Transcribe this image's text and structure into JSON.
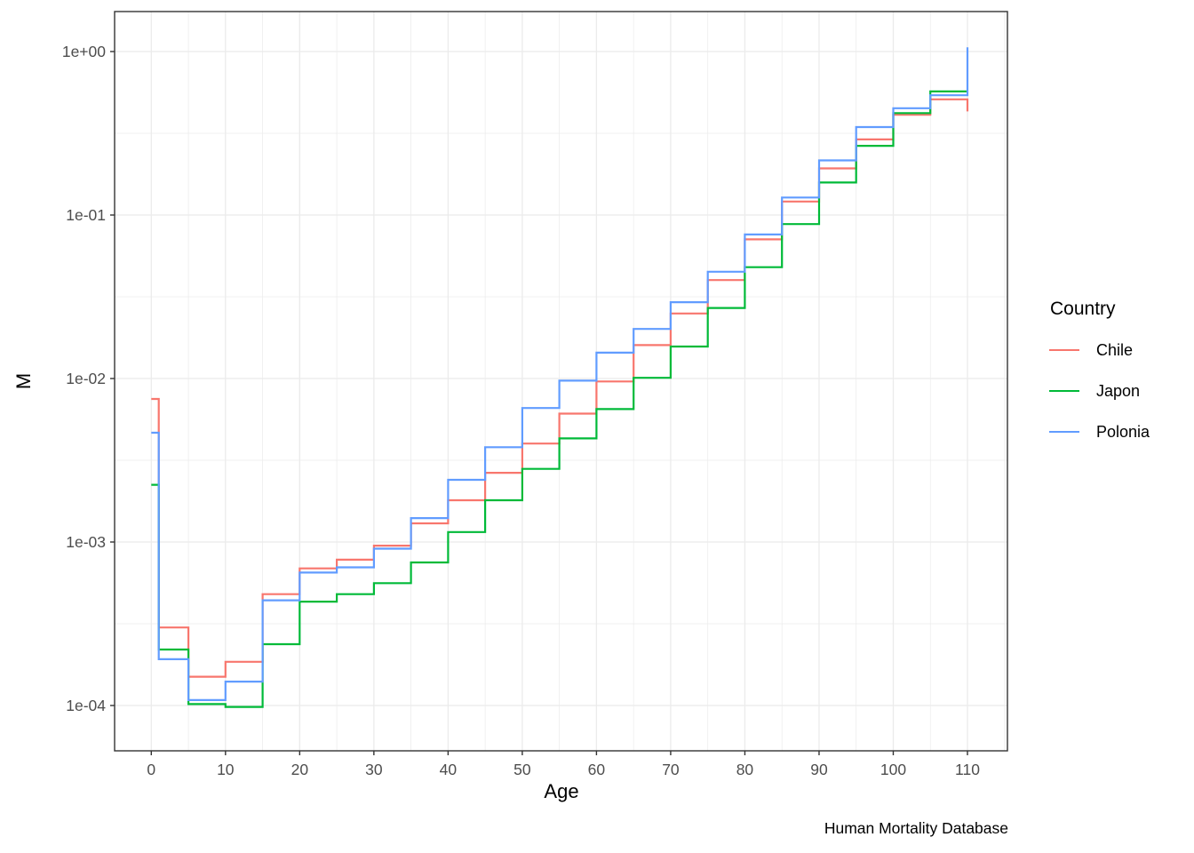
{
  "chart_data": {
    "type": "line",
    "step": true,
    "title": "",
    "xlabel": "Age",
    "ylabel": "M",
    "caption": "Human Mortality Database",
    "legend_title": "Country",
    "legend_position": "right",
    "grid": true,
    "x": [
      0,
      1,
      5,
      10,
      15,
      20,
      25,
      30,
      35,
      40,
      45,
      50,
      55,
      60,
      65,
      70,
      75,
      80,
      85,
      90,
      95,
      100,
      105,
      110
    ],
    "series": [
      {
        "name": "Chile",
        "color": "#F8766D",
        "values": [
          0.0075,
          0.0003,
          0.00015,
          0.000185,
          0.00048,
          0.00069,
          0.00078,
          0.00095,
          0.0013,
          0.0018,
          0.00265,
          0.004,
          0.0061,
          0.0096,
          0.016,
          0.025,
          0.04,
          0.071,
          0.121,
          0.193,
          0.29,
          0.41,
          0.51,
          0.43
        ]
      },
      {
        "name": "Japon",
        "color": "#00BA38",
        "values": [
          0.00224,
          0.00022,
          0.000102,
          9.8e-05,
          0.000237,
          0.000432,
          0.00048,
          0.00056,
          0.00075,
          0.00115,
          0.0018,
          0.0028,
          0.0043,
          0.0065,
          0.0101,
          0.0157,
          0.027,
          0.048,
          0.088,
          0.158,
          0.265,
          0.42,
          0.57,
          0.57
        ]
      },
      {
        "name": "Polonia",
        "color": "#619CFF",
        "values": [
          0.00466,
          0.000192,
          0.000108,
          0.00014,
          0.00044,
          0.00065,
          0.0007,
          0.00091,
          0.0014,
          0.0024,
          0.0038,
          0.0066,
          0.0097,
          0.0144,
          0.0201,
          0.0293,
          0.045,
          0.076,
          0.128,
          0.216,
          0.345,
          0.45,
          0.54,
          1.06
        ]
      }
    ],
    "x_axis": {
      "tick_values": [
        0,
        10,
        20,
        30,
        40,
        50,
        60,
        70,
        80,
        90,
        100,
        110
      ],
      "tick_labels": [
        "0",
        "10",
        "20",
        "30",
        "40",
        "50",
        "60",
        "70",
        "80",
        "90",
        "100",
        "110"
      ],
      "minor_ticks": [
        5,
        15,
        25,
        35,
        45,
        55,
        65,
        75,
        85,
        95,
        105,
        115
      ]
    },
    "y_axis": {
      "scale": "log10",
      "tick_values": [
        1,
        0.1,
        0.01,
        0.001,
        0.0001
      ],
      "tick_labels": [
        "1e+00",
        "1e-01",
        "1e-02",
        "1e-03",
        "1e-04"
      ],
      "minor_values": [
        0.31622777,
        0.031622777,
        0.0031622777,
        0.00031622777
      ]
    },
    "colors": {
      "grid": "#EBEBEB",
      "panel_border": "#333333",
      "tick_mark": "#333333",
      "tick_label": "#4D4D4D",
      "title_text": "#000000",
      "background": "#FFFFFF"
    }
  }
}
